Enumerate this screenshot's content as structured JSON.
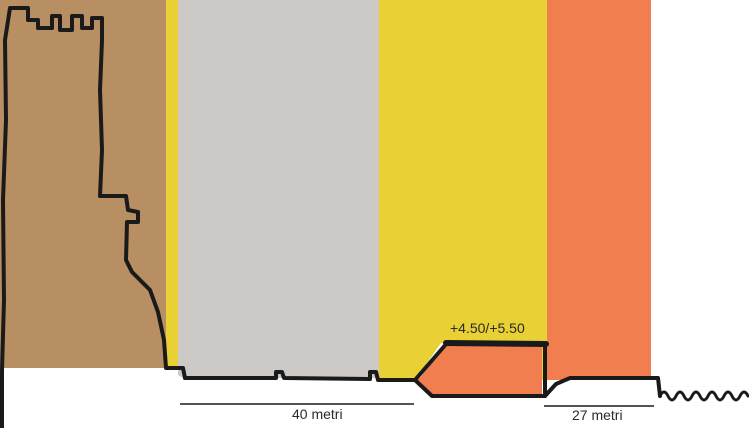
{
  "diagram": {
    "zones": [
      {
        "name": "castle-zone",
        "color": "#b88f62"
      },
      {
        "name": "left-yellow-strip",
        "color": "#e8d035"
      },
      {
        "name": "grey-zone",
        "color": "#cdc9c7"
      },
      {
        "name": "yellow-zone",
        "color": "#e8d035"
      },
      {
        "name": "orange-zone",
        "color": "#f07e4e"
      }
    ],
    "platform_color": "#f07e4e",
    "line_color": "#1a1a1a",
    "labels": {
      "elevation": "+4.50/+5.50",
      "distance_left": "40 metri",
      "distance_right": "27 metri"
    }
  }
}
